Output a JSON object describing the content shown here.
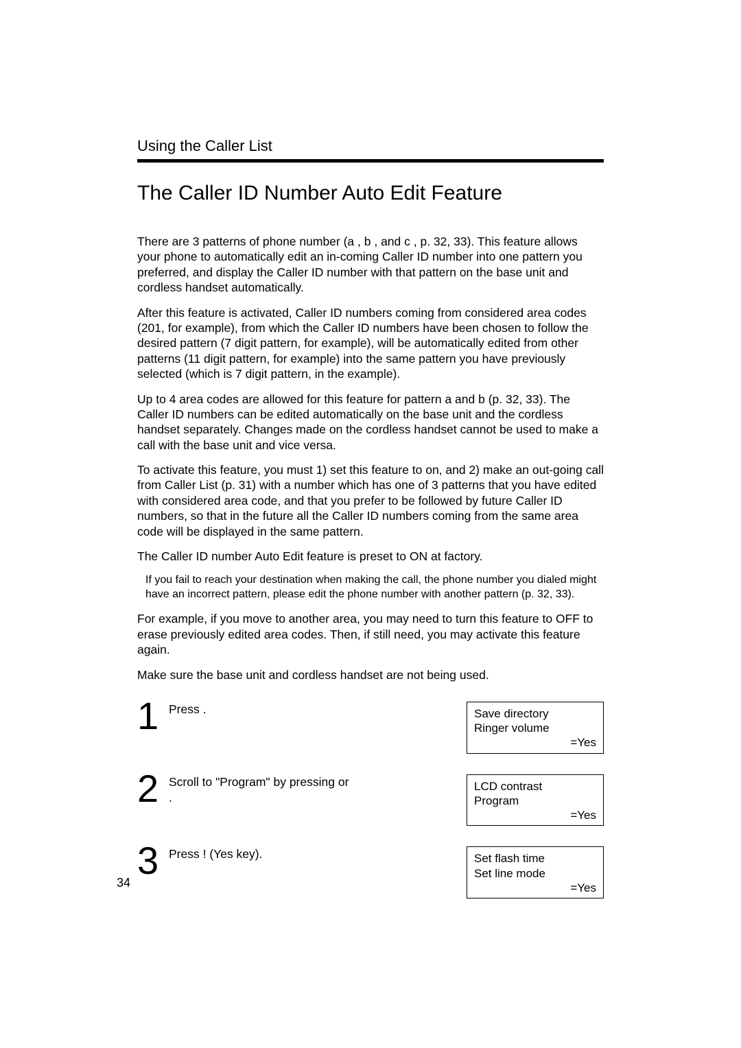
{
  "page": {
    "section_header": "Using the Caller List",
    "title": "The Caller ID Number Auto Edit Feature",
    "page_number": "34"
  },
  "paragraphs": {
    "p1": "There are 3 patterns of phone number (a , b , and c , p. 32, 33). This feature allows your phone to automatically edit an in-coming Caller ID number into one pattern you preferred, and display the Caller ID number with that pattern on the base unit and cordless handset automatically.",
    "p2": "After this feature is activated, Caller ID numbers coming from considered area codes (201, for example), from which the Caller ID numbers have been chosen to follow the desired pattern (7 digit pattern, for example), will be automatically edited from other patterns (11 digit pattern, for example) into the same pattern you have previously selected (which is 7 digit pattern, in the example).",
    "p3": "Up to 4 area codes are allowed for this feature for pattern a  and b (p. 32, 33). The Caller ID numbers can be edited automatically on the base unit and the cordless handset separately. Changes made on the cordless handset cannot be used to make a call with the base unit and vice versa.",
    "p4": "To activate this feature, you must 1) set this feature to on, and 2) make an out-going call from Caller List (p. 31) with a number which has one of 3 patterns that you have edited with considered area code, and that you prefer to be followed by future Caller ID numbers, so that in the future all the Caller ID numbers coming from the same area code will be displayed in the same pattern.",
    "p5": "The Caller ID number Auto Edit feature is preset to ON at factory.",
    "note": "If you fail to reach your destination when making the call, the phone number you dialed might have an incorrect pattern, please edit the phone number with another pattern (p. 32, 33).",
    "p6": "For example, if you move to another area, you may need to turn this feature to OFF to erase previously edited area codes. Then, if still need, you may activate this feature again.",
    "p7": "Make sure the base unit and cordless handset are not being used."
  },
  "steps": {
    "s1": {
      "num": "1",
      "text": "Press                          .",
      "display_line1": "Save directory",
      "display_line2": "Ringer volume",
      "display_yes": "=Yes"
    },
    "s2": {
      "num": "2",
      "text_a": "Scroll to \"Program",
      "text_b": "\" by pressing        or",
      "text_c": "       .",
      "display_line1": "LCD contrast",
      "display_line2": "Program",
      "display_yes": "=Yes"
    },
    "s3": {
      "num": "3",
      "text": "Press  !   (Yes key).",
      "display_line1": "Set flash time",
      "display_line2": "Set line mode",
      "display_yes": "=Yes"
    }
  }
}
